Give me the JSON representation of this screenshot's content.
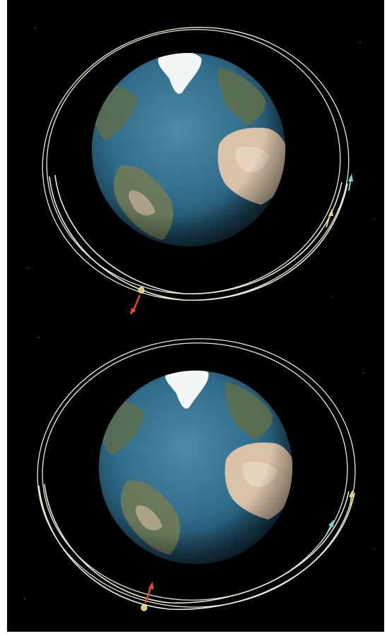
{
  "scene": {
    "description_free": true,
    "panels": [
      {
        "id": "top",
        "earth_icon": "earth-globe",
        "satellites": [
          {
            "icon": "satellite-marker",
            "color": "#e6c36b"
          },
          {
            "icon": "velocity-arrow",
            "color": "#e04a2a"
          },
          {
            "icon": "velocity-arrow",
            "color": "#e8d27a"
          },
          {
            "icon": "velocity-arrow",
            "color": "#7fd3d6"
          }
        ]
      },
      {
        "id": "bottom",
        "earth_icon": "earth-globe",
        "satellites": [
          {
            "icon": "satellite-marker",
            "color": "#e6c36b"
          },
          {
            "icon": "velocity-arrow",
            "color": "#e04a2a"
          },
          {
            "icon": "velocity-arrow",
            "color": "#e8d27a"
          },
          {
            "icon": "velocity-arrow",
            "color": "#7fd3d6"
          }
        ]
      }
    ],
    "colors": {
      "space": "#000000",
      "ocean": "#2f6d8c",
      "land_desert": "#d9c2a8",
      "land_green": "#5f6e4a",
      "ice": "#f2f6f7",
      "orbit": "#e9edd6"
    }
  }
}
